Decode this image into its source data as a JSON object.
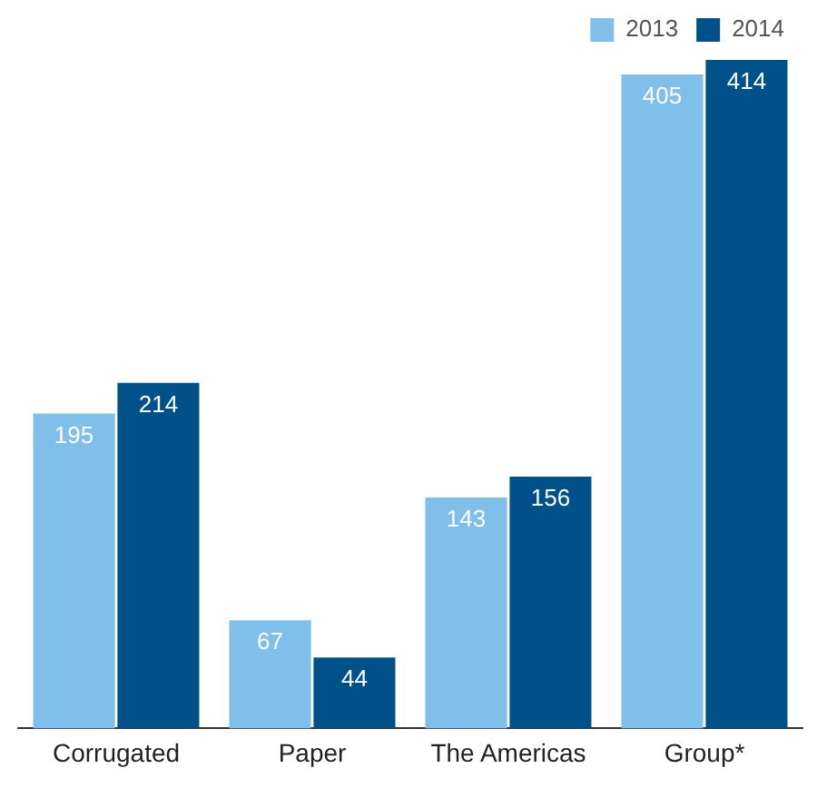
{
  "chart_data": {
    "type": "bar",
    "categories": [
      "Corrugated",
      "Paper",
      "The Americas",
      "Group*"
    ],
    "series": [
      {
        "name": "2013",
        "color": "#7fbfea",
        "values": [
          195,
          67,
          143,
          405
        ]
      },
      {
        "name": "2014",
        "color": "#00508a",
        "values": [
          214,
          44,
          156,
          414
        ]
      }
    ],
    "data_labels": true,
    "legend": "top right",
    "grid": false
  }
}
